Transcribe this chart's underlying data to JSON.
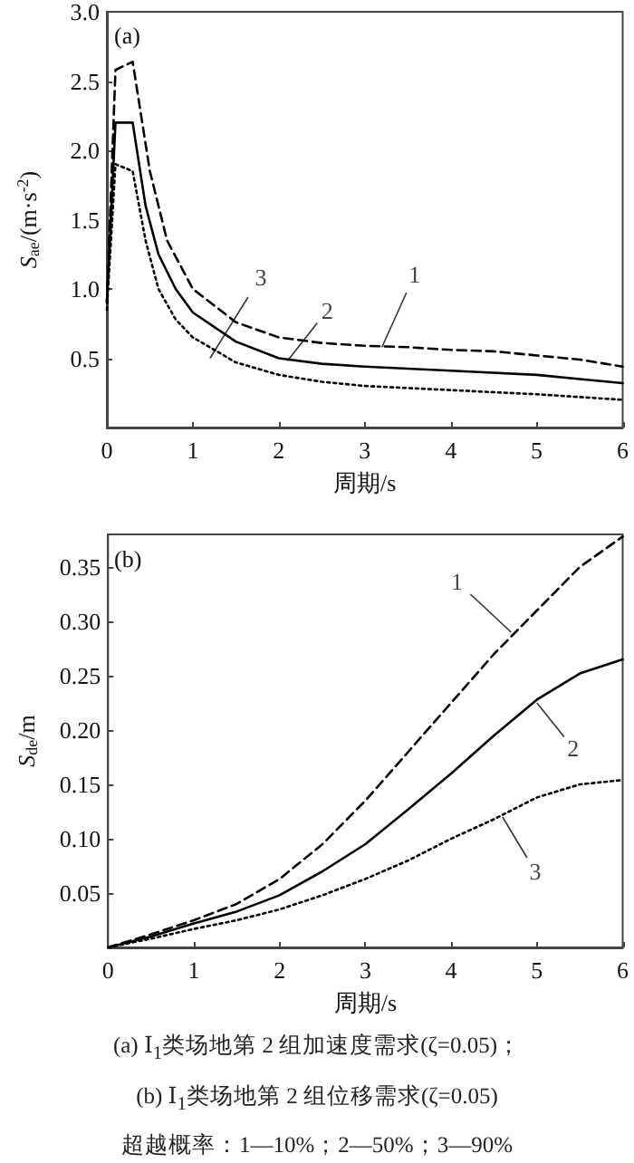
{
  "chart_data": [
    {
      "type": "line",
      "title": "(a)",
      "xlabel": "周期/s",
      "ylabel": "S$_{ae}$/(m·s$^{-2}$)",
      "xlim": [
        0,
        6
      ],
      "xticks": [
        0,
        1,
        2,
        3,
        4,
        5,
        6
      ],
      "ylim": [
        0,
        3
      ],
      "yticks": [
        {
          "value": 0.5,
          "label": "0.5"
        },
        {
          "value": 1,
          "label": "1.0"
        },
        {
          "value": 1.5,
          "label": "1.5"
        },
        {
          "value": 2,
          "label": "2.0"
        },
        {
          "value": 2.5,
          "label": "2.5"
        },
        {
          "value": 3,
          "label": "3.0"
        }
      ],
      "marker": "none",
      "series": [
        {
          "color": "#000000",
          "line_style": "dashed",
          "x": [
            0,
            0.1,
            0.3,
            0.5,
            0.7,
            1,
            1.5,
            2,
            2.5,
            3,
            3.5,
            4,
            4.5,
            5,
            5.5,
            6
          ],
          "values": [
            0.9,
            2.58,
            2.64,
            1.85,
            1.35,
            1.0,
            0.76,
            0.65,
            0.61,
            0.59,
            0.58,
            0.56,
            0.55,
            0.52,
            0.49,
            0.44
          ]
        },
        {
          "color": "#000000",
          "line_style": "solid",
          "x": [
            0,
            0.1,
            0.3,
            0.45,
            0.6,
            0.8,
            1,
            1.5,
            2,
            2.5,
            3,
            4,
            5,
            5.5,
            6
          ],
          "values": [
            0.9,
            2.2,
            2.2,
            1.6,
            1.25,
            1.0,
            0.83,
            0.62,
            0.5,
            0.46,
            0.44,
            0.41,
            0.38,
            0.35,
            0.32
          ]
        },
        {
          "color": "#000000",
          "line_style": "dotted",
          "x": [
            0,
            0.1,
            0.3,
            0.45,
            0.6,
            0.8,
            1,
            1.5,
            2,
            2.5,
            3,
            4,
            5,
            6
          ],
          "values": [
            0.85,
            1.9,
            1.85,
            1.35,
            1.0,
            0.78,
            0.65,
            0.47,
            0.38,
            0.33,
            0.3,
            0.27,
            0.24,
            0.2
          ]
        }
      ],
      "annotations": [
        {
          "text": "1",
          "x": 3.2,
          "y": 0.58
        },
        {
          "text": "2",
          "x": 2.1,
          "y": 0.48
        },
        {
          "text": "3",
          "x": 1.2,
          "y": 0.5
        },
        "(a) Ⅰ$_{1}$类场地第 2 组加速度需求(ζ=0.05)；"
      ]
    },
    {
      "type": "line",
      "title": "(b)",
      "xlabel": "周期/s",
      "ylabel": "S$_{de}$/m",
      "xlim": [
        0,
        6
      ],
      "xticks": [
        0,
        1,
        2,
        3,
        4,
        5,
        6
      ],
      "ylim": [
        0,
        0.38
      ],
      "yticks": [
        {
          "value": 0.05,
          "label": "0.05"
        },
        {
          "value": 0.1,
          "label": "0.10"
        },
        {
          "value": 0.15,
          "label": "0.15"
        },
        {
          "value": 0.2,
          "label": "0.20"
        },
        {
          "value": 0.25,
          "label": "0.25"
        },
        {
          "value": 0.3,
          "label": "0.30"
        },
        {
          "value": 0.35,
          "label": "0.35"
        }
      ],
      "marker": "none",
      "series": [
        {
          "color": "#000000",
          "line_style": "dashed",
          "x": [
            0,
            0.5,
            1,
            1.5,
            2,
            2.5,
            3,
            3.5,
            4,
            4.5,
            5,
            5.5,
            6
          ],
          "values": [
            0,
            0.012,
            0.025,
            0.04,
            0.063,
            0.095,
            0.135,
            0.18,
            0.225,
            0.27,
            0.31,
            0.35,
            0.378
          ]
        },
        {
          "color": "#000000",
          "line_style": "solid",
          "x": [
            0,
            0.5,
            1,
            1.5,
            2,
            2.5,
            3,
            3.5,
            4,
            4.5,
            5,
            5.5,
            6
          ],
          "values": [
            0,
            0.01,
            0.022,
            0.033,
            0.048,
            0.07,
            0.095,
            0.127,
            0.16,
            0.195,
            0.228,
            0.252,
            0.265
          ]
        },
        {
          "color": "#000000",
          "line_style": "dotted",
          "x": [
            0,
            0.5,
            1,
            1.5,
            2,
            2.5,
            3,
            3.5,
            4,
            4.5,
            5,
            5.5,
            6
          ],
          "values": [
            0,
            0.008,
            0.017,
            0.025,
            0.035,
            0.048,
            0.063,
            0.08,
            0.1,
            0.118,
            0.138,
            0.15,
            0.154
          ]
        }
      ],
      "annotations": [
        {
          "text": "1",
          "x": 4.7,
          "y": 0.29
        },
        {
          "text": "2",
          "x": 5.0,
          "y": 0.225
        },
        {
          "text": "3",
          "x": 4.6,
          "y": 0.12
        },
        "(b) Ⅰ$_{1}$类场地第 2 组位移需求(ζ=0.05)",
        "超越概率：1—10%；2—50%；3—90%"
      ]
    }
  ]
}
